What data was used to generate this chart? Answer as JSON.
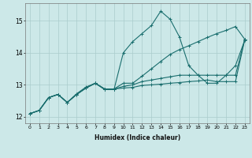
{
  "xlabel": "Humidex (Indice chaleur)",
  "background_color": "#cce8e8",
  "grid_color": "#aacccc",
  "line_color": "#1a6e6e",
  "xlim": [
    -0.5,
    23.5
  ],
  "ylim": [
    11.8,
    15.55
  ],
  "xticks": [
    0,
    1,
    2,
    3,
    4,
    5,
    6,
    7,
    8,
    9,
    10,
    11,
    12,
    13,
    14,
    15,
    16,
    17,
    18,
    19,
    20,
    21,
    22,
    23
  ],
  "yticks": [
    12,
    13,
    14,
    15
  ],
  "series": [
    [
      12.1,
      12.2,
      12.6,
      12.7,
      12.45,
      12.7,
      12.9,
      13.05,
      12.85,
      12.85,
      14.0,
      14.35,
      14.6,
      14.85,
      15.3,
      15.05,
      14.5,
      13.6,
      13.3,
      13.05,
      13.05,
      13.3,
      13.6,
      14.4
    ],
    [
      12.1,
      12.2,
      12.6,
      12.7,
      12.45,
      12.72,
      12.93,
      13.05,
      12.87,
      12.87,
      13.05,
      13.05,
      13.27,
      13.5,
      13.73,
      13.95,
      14.1,
      14.22,
      14.35,
      14.48,
      14.6,
      14.7,
      14.82,
      14.42
    ],
    [
      12.1,
      12.2,
      12.6,
      12.7,
      12.45,
      12.7,
      12.9,
      13.05,
      12.87,
      12.87,
      12.95,
      13.0,
      13.1,
      13.15,
      13.2,
      13.25,
      13.3,
      13.3,
      13.3,
      13.3,
      13.3,
      13.3,
      13.3,
      14.42
    ],
    [
      12.1,
      12.2,
      12.6,
      12.7,
      12.45,
      12.7,
      12.9,
      13.05,
      12.87,
      12.87,
      12.9,
      12.92,
      12.98,
      13.0,
      13.02,
      13.05,
      13.07,
      13.1,
      13.12,
      13.15,
      13.1,
      13.1,
      13.1,
      14.42
    ]
  ]
}
